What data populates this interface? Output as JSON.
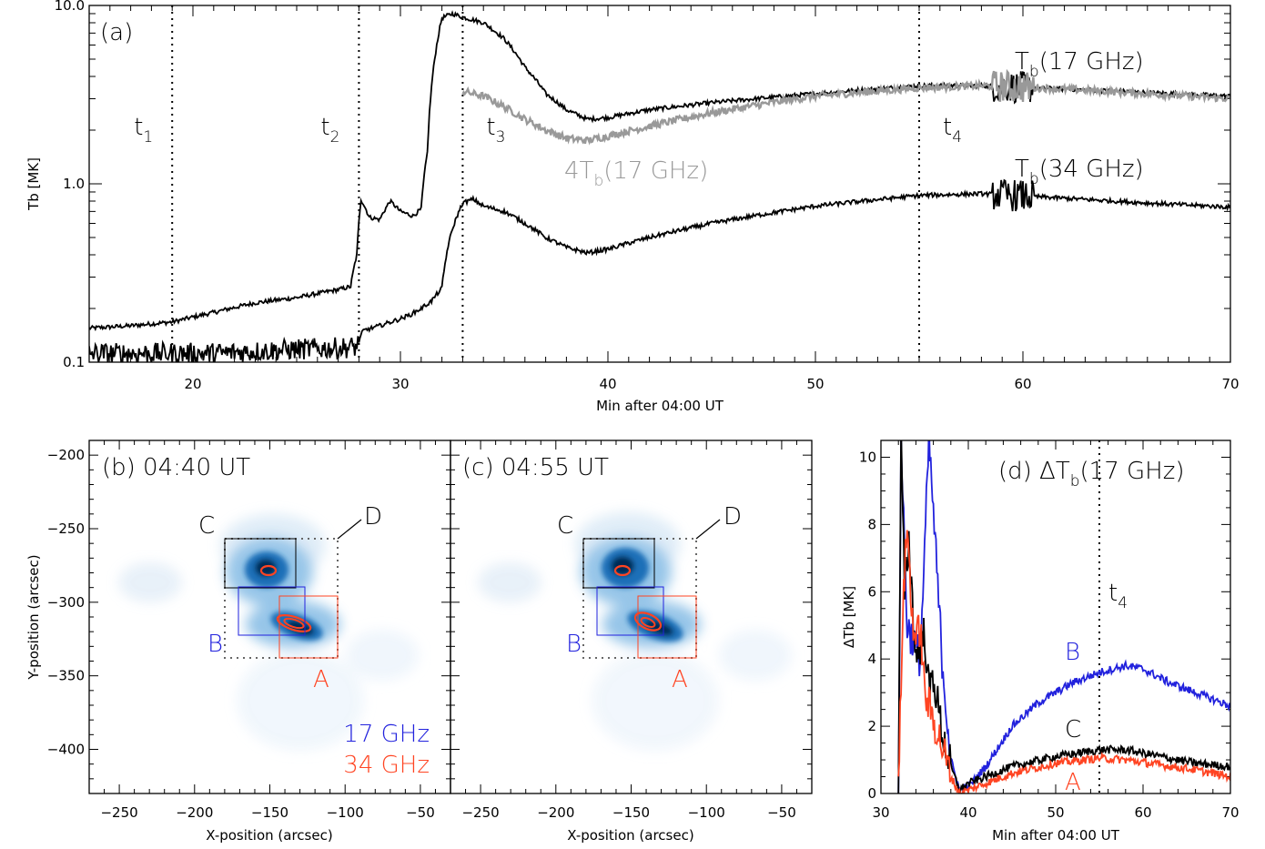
{
  "chart_data": [
    {
      "panel": "a",
      "type": "line",
      "panel_label": "(a)",
      "xlabel": "Min after 04:00 UT",
      "ylabel": "Tb [MK]",
      "xlim": [
        15,
        70
      ],
      "ylim": [
        0.1,
        10
      ],
      "yscale": "log",
      "x_ticks": [
        "20",
        "30",
        "40",
        "50",
        "60",
        "70"
      ],
      "y_ticks": [
        "0.1",
        "1.0",
        "10.0"
      ],
      "markers": [
        {
          "name": "t1",
          "base": "t",
          "sub": "1",
          "x": 19
        },
        {
          "name": "t2",
          "base": "t",
          "sub": "2",
          "x": 28
        },
        {
          "name": "t3",
          "base": "t",
          "sub": "3",
          "x": 33
        },
        {
          "name": "t4",
          "base": "t",
          "sub": "4",
          "x": 55
        }
      ],
      "series": [
        {
          "name": "Tb(17 GHz)",
          "color": "#000000",
          "label_main": "T",
          "label_sub": "b",
          "label_rest": "(17 GHz)",
          "points": [
            [
              15,
              0.155
            ],
            [
              17,
              0.16
            ],
            [
              19,
              0.168
            ],
            [
              21,
              0.19
            ],
            [
              23,
              0.215
            ],
            [
              25,
              0.23
            ],
            [
              27,
              0.255
            ],
            [
              27.6,
              0.265
            ],
            [
              27.9,
              0.4
            ],
            [
              28.1,
              0.82
            ],
            [
              28.5,
              0.65
            ],
            [
              29,
              0.63
            ],
            [
              29.5,
              0.8
            ],
            [
              30,
              0.7
            ],
            [
              30.6,
              0.66
            ],
            [
              31,
              0.72
            ],
            [
              31.3,
              1.5
            ],
            [
              31.6,
              4.5
            ],
            [
              32,
              8.5
            ],
            [
              32.5,
              9.0
            ],
            [
              33,
              8.6
            ],
            [
              34,
              8.0
            ],
            [
              35,
              6.5
            ],
            [
              36,
              4.5
            ],
            [
              37,
              3.2
            ],
            [
              38,
              2.6
            ],
            [
              39,
              2.3
            ],
            [
              40,
              2.35
            ],
            [
              42,
              2.6
            ],
            [
              45,
              2.85
            ],
            [
              50,
              3.2
            ],
            [
              55,
              3.55
            ],
            [
              58,
              3.55
            ],
            [
              62,
              3.4
            ],
            [
              66,
              3.25
            ],
            [
              70,
              3.1
            ]
          ]
        },
        {
          "name": "4Tb(17 GHz)",
          "color": "#999999",
          "label_main": "4T",
          "label_sub": "b",
          "label_rest": "(17 GHz)",
          "points": [
            [
              33,
              3.3
            ],
            [
              34,
              3.1
            ],
            [
              35,
              2.7
            ],
            [
              36,
              2.3
            ],
            [
              37,
              2.0
            ],
            [
              38,
              1.8
            ],
            [
              39,
              1.75
            ],
            [
              40,
              1.85
            ],
            [
              42,
              2.1
            ],
            [
              45,
              2.5
            ],
            [
              50,
              3.1
            ],
            [
              55,
              3.45
            ],
            [
              58,
              3.55
            ],
            [
              62,
              3.4
            ],
            [
              66,
              3.2
            ],
            [
              70,
              3.0
            ]
          ]
        },
        {
          "name": "Tb(34 GHz)",
          "color": "#000000",
          "label_main": "T",
          "label_sub": "b",
          "label_rest": "(34 GHz)",
          "points": [
            [
              15,
              0.112
            ],
            [
              19,
              0.112
            ],
            [
              21,
              0.112
            ],
            [
              23,
              0.115
            ],
            [
              25,
              0.118
            ],
            [
              27,
              0.12
            ],
            [
              27.9,
              0.122
            ],
            [
              28.2,
              0.15
            ],
            [
              29,
              0.16
            ],
            [
              30,
              0.175
            ],
            [
              30.5,
              0.185
            ],
            [
              31,
              0.2
            ],
            [
              31.5,
              0.22
            ],
            [
              32,
              0.26
            ],
            [
              32.3,
              0.45
            ],
            [
              32.6,
              0.6
            ],
            [
              33,
              0.78
            ],
            [
              33.5,
              0.82
            ],
            [
              34,
              0.75
            ],
            [
              35,
              0.7
            ],
            [
              36,
              0.6
            ],
            [
              37,
              0.5
            ],
            [
              38,
              0.44
            ],
            [
              39,
              0.41
            ],
            [
              40,
              0.43
            ],
            [
              42,
              0.5
            ],
            [
              45,
              0.6
            ],
            [
              50,
              0.75
            ],
            [
              55,
              0.86
            ],
            [
              58,
              0.88
            ],
            [
              62,
              0.83
            ],
            [
              66,
              0.78
            ],
            [
              70,
              0.74
            ]
          ]
        }
      ]
    },
    {
      "panel": "b",
      "type": "image",
      "panel_label": "(b) 04:40 UT",
      "xlabel": "X-position (arcsec)",
      "ylabel": "Y-position (arcsec)",
      "xlim": [
        -270,
        -30
      ],
      "ylim": [
        -430,
        -190
      ],
      "x_ticks": [
        "-250",
        "-200",
        "-150",
        "-100",
        "-50"
      ],
      "y_ticks": [
        "-200",
        "-250",
        "-300",
        "-350",
        "-400"
      ],
      "legend": [
        {
          "label": "17 GHz",
          "color": "#2222dd"
        },
        {
          "label": "34 GHz",
          "color": "#ff4422"
        }
      ],
      "regions": [
        {
          "name": "A",
          "color": "#ff4422"
        },
        {
          "name": "B",
          "color": "#2222dd"
        },
        {
          "name": "C",
          "color": "#000000"
        },
        {
          "name": "D",
          "color": "#666666"
        }
      ]
    },
    {
      "panel": "c",
      "type": "image",
      "panel_label": "(c) 04:55 UT",
      "xlabel": "X-position (arcsec)",
      "xlim": [
        -270,
        -30
      ],
      "ylim": [
        -430,
        -190
      ],
      "x_ticks": [
        "-250",
        "-200",
        "-150",
        "-100",
        "-50"
      ],
      "regions": [
        {
          "name": "A",
          "color": "#ff4422"
        },
        {
          "name": "B",
          "color": "#2222dd"
        },
        {
          "name": "C",
          "color": "#000000"
        },
        {
          "name": "D",
          "color": "#666666"
        }
      ]
    },
    {
      "panel": "d",
      "type": "line",
      "panel_label_main": "(d) ΔT",
      "panel_label_sub": "b",
      "panel_label_rest": "(17 GHz)",
      "xlabel": "Min after 04:00 UT",
      "ylabel": "ΔTb [MK]",
      "xlim": [
        30,
        70
      ],
      "ylim": [
        0,
        10.5
      ],
      "x_ticks": [
        "30",
        "40",
        "50",
        "60",
        "70"
      ],
      "y_ticks": [
        "0",
        "2",
        "4",
        "6",
        "8",
        "10"
      ],
      "markers": [
        {
          "name": "t4",
          "base": "t",
          "sub": "4",
          "x": 55
        }
      ],
      "series": [
        {
          "name": "B",
          "color": "#2222dd",
          "points": [
            [
              32,
              0
            ],
            [
              32.3,
              10.5
            ],
            [
              33,
              5
            ],
            [
              34.5,
              4
            ],
            [
              35.5,
              10.5
            ],
            [
              37,
              4
            ],
            [
              38,
              1
            ],
            [
              39,
              0.1
            ],
            [
              40,
              0.2
            ],
            [
              42,
              0.8
            ],
            [
              45,
              2
            ],
            [
              48,
              2.7
            ],
            [
              50,
              3.0
            ],
            [
              52,
              3.3
            ],
            [
              55,
              3.6
            ],
            [
              58,
              3.8
            ],
            [
              60,
              3.7
            ],
            [
              63,
              3.3
            ],
            [
              66,
              3.0
            ],
            [
              70,
              2.6
            ]
          ]
        },
        {
          "name": "C",
          "color": "#000000",
          "points": [
            [
              32,
              0
            ],
            [
              32.3,
              10.5
            ],
            [
              32.7,
              6
            ],
            [
              33.2,
              7.5
            ],
            [
              34,
              4
            ],
            [
              35,
              4.8
            ],
            [
              35.5,
              3
            ],
            [
              36,
              3.5
            ],
            [
              37,
              1.8
            ],
            [
              38,
              0.8
            ],
            [
              39,
              0.1
            ],
            [
              40,
              0.3
            ],
            [
              42,
              0.5
            ],
            [
              45,
              0.8
            ],
            [
              50,
              1.1
            ],
            [
              55,
              1.3
            ],
            [
              58,
              1.3
            ],
            [
              62,
              1.1
            ],
            [
              66,
              0.9
            ],
            [
              70,
              0.8
            ]
          ]
        },
        {
          "name": "A",
          "color": "#ff4422",
          "points": [
            [
              32,
              0
            ],
            [
              32.5,
              5.5
            ],
            [
              33,
              8
            ],
            [
              33.5,
              5.5
            ],
            [
              34,
              4.5
            ],
            [
              34.5,
              5
            ],
            [
              35,
              3
            ],
            [
              36,
              2.2
            ],
            [
              37,
              1.4
            ],
            [
              38,
              0.5
            ],
            [
              39,
              0
            ],
            [
              40,
              0.1
            ],
            [
              42,
              0.3
            ],
            [
              45,
              0.6
            ],
            [
              50,
              0.9
            ],
            [
              55,
              1.05
            ],
            [
              58,
              1.0
            ],
            [
              62,
              0.85
            ],
            [
              66,
              0.7
            ],
            [
              70,
              0.5
            ]
          ]
        }
      ]
    }
  ]
}
